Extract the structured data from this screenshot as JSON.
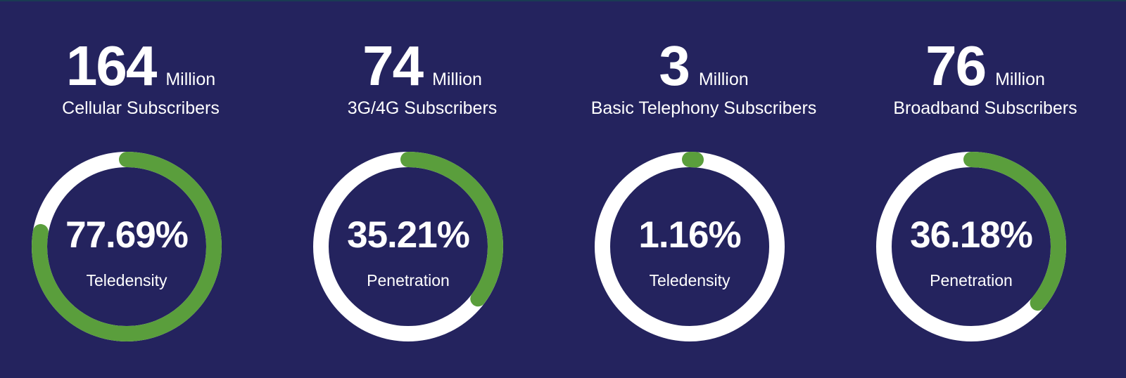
{
  "colors": {
    "background": "#24235e",
    "track": "#ffffff",
    "progress": "#5a9e3c",
    "text": "#ffffff"
  },
  "stats": [
    {
      "number": "164",
      "unit": "Million",
      "caption": "Cellular Subscribers",
      "percent_label": "77.69%",
      "metric": "Teledensity"
    },
    {
      "number": "74",
      "unit": "Million",
      "caption": "3G/4G Subscribers",
      "percent_label": "35.21%",
      "metric": "Penetration"
    },
    {
      "number": "3",
      "unit": "Million",
      "caption": "Basic Telephony Subscribers",
      "percent_label": "1.16%",
      "metric": "Teledensity"
    },
    {
      "number": "76",
      "unit": "Million",
      "caption": "Broadband Subscribers",
      "percent_label": "36.18%",
      "metric": "Penetration"
    }
  ],
  "chart_data": {
    "type": "donut",
    "categories": [
      "Cellular Subscribers",
      "3G/4G Subscribers",
      "Basic Telephony Subscribers",
      "Broadband Subscribers"
    ],
    "subscribers_million": [
      164,
      74,
      3,
      76
    ],
    "series": [
      {
        "values": [
          77.69,
          35.21,
          1.16,
          36.18
        ]
      }
    ],
    "metric_labels": [
      "Teledensity",
      "Penetration",
      "Teledensity",
      "Penetration"
    ],
    "ylim": [
      0,
      100
    ]
  }
}
